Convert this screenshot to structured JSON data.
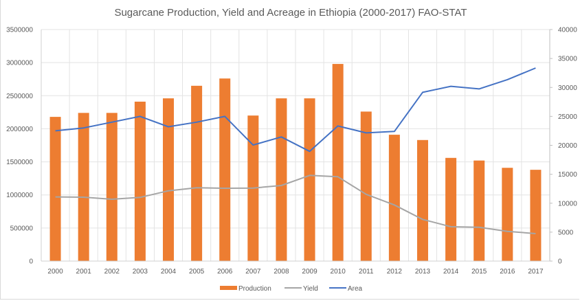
{
  "chart_data": {
    "type": "bar",
    "title": "Sugarcane Production, Yield and Acreage in Ethiopia (2000-2017) FAO-STAT",
    "xlabel": "",
    "ylabel": "",
    "y2label": "",
    "categories": [
      "2000",
      "2001",
      "2002",
      "2003",
      "2004",
      "2005",
      "2006",
      "2007",
      "2008",
      "2009",
      "2010",
      "2011",
      "2012",
      "2013",
      "2014",
      "2015",
      "2016",
      "2017"
    ],
    "ylim": [
      0,
      3500000
    ],
    "y_ticks": [
      0,
      500000,
      1000000,
      1500000,
      2000000,
      2500000,
      3000000,
      3500000
    ],
    "y_tick_labels": [
      "0",
      "500000",
      "1000000",
      "1500000",
      "2000000",
      "2500000",
      "3000000",
      "3500000"
    ],
    "y2lim": [
      0,
      40000
    ],
    "y2_ticks": [
      0,
      5000,
      10000,
      15000,
      20000,
      25000,
      30000,
      35000,
      40000
    ],
    "y2_tick_labels": [
      "0",
      "5000",
      "10000",
      "15000",
      "20000",
      "25000",
      "30000",
      "35000",
      "40000"
    ],
    "grid": true,
    "legend_position": "bottom",
    "series": [
      {
        "name": "Production",
        "type": "bar",
        "axis": "left",
        "color": "#ED7D31",
        "values": [
          2180000,
          2240000,
          2240000,
          2410000,
          2460000,
          2650000,
          2760000,
          2200000,
          2460000,
          2460000,
          2980000,
          2260000,
          1910000,
          1830000,
          1560000,
          1520000,
          1410000,
          1380000
        ]
      },
      {
        "name": "Yield",
        "type": "line",
        "axis": "left",
        "color": "#A5A5A5",
        "values": [
          970000,
          966000,
          935000,
          963000,
          1062000,
          1108000,
          1101000,
          1104000,
          1142000,
          1295000,
          1274000,
          1010000,
          848000,
          630000,
          519000,
          512000,
          450000,
          415000
        ]
      },
      {
        "name": "Area",
        "type": "line",
        "axis": "right",
        "color": "#4472C4",
        "values": [
          22500,
          23000,
          24000,
          25000,
          23200,
          24000,
          25000,
          20050,
          21450,
          18950,
          23350,
          22150,
          22400,
          29150,
          30200,
          29750,
          31350,
          33350
        ]
      }
    ]
  }
}
